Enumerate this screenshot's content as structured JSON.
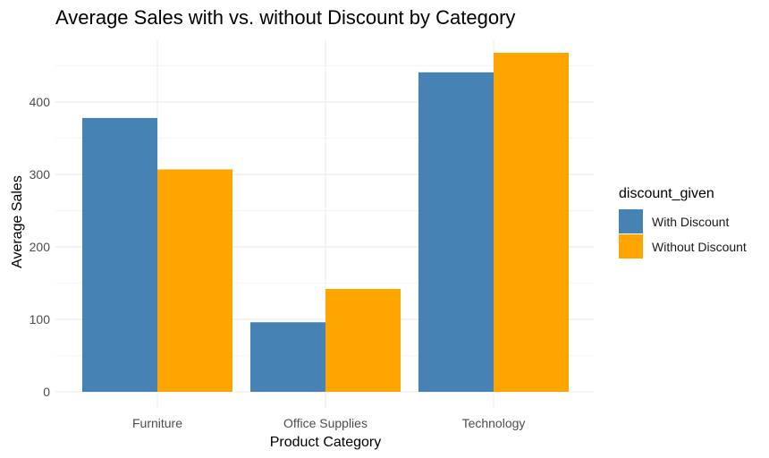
{
  "chart_data": {
    "type": "bar",
    "title": "Average Sales with vs. without Discount by Category",
    "xlabel": "Product Category",
    "ylabel": "Average Sales",
    "categories": [
      "Furniture",
      "Office Supplies",
      "Technology"
    ],
    "series": [
      {
        "name": "With Discount",
        "color": "#4682B4",
        "values": [
          378,
          96,
          441
        ]
      },
      {
        "name": "Without Discount",
        "color": "#FFA500",
        "values": [
          307,
          142,
          468
        ]
      }
    ],
    "ylim": [
      0,
      468
    ],
    "yticks": [
      0,
      100,
      200,
      300,
      400
    ],
    "ytick_labels": [
      "0",
      "100",
      "200",
      "300",
      "400"
    ],
    "grid": true,
    "legend": {
      "title": "discount_given",
      "placement": "right"
    }
  }
}
